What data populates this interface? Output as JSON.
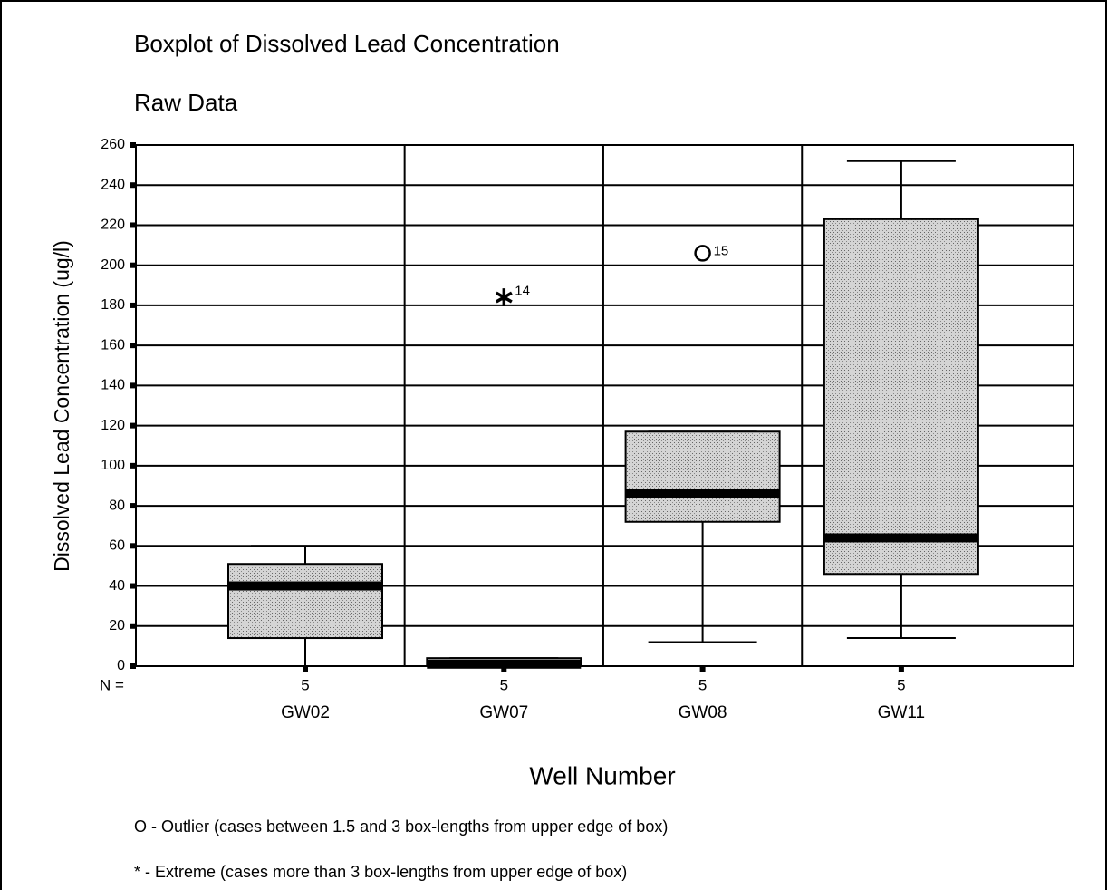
{
  "chart_data": {
    "type": "boxplot",
    "title": "Boxplot of Dissolved Lead Concentration",
    "subtitle": "Raw Data",
    "y_label": "Dissolved Lead Concentration (ug/l)",
    "x_label": "Well Number",
    "n_label": "N =",
    "categories": [
      "GW02",
      "GW07",
      "GW08",
      "GW11"
    ],
    "boxes": [
      {
        "min": 0,
        "q1": 14,
        "median": 40,
        "q3": 51,
        "max": 60,
        "n": 5,
        "outliers": []
      },
      {
        "min": 0,
        "q1": 0,
        "median": 1,
        "q3": 4,
        "max": 4,
        "n": 5,
        "outliers": [
          {
            "value": 186,
            "label": "14",
            "kind": "extreme"
          }
        ]
      },
      {
        "min": 12,
        "q1": 72,
        "median": 86,
        "q3": 117,
        "max": 117,
        "n": 5,
        "outliers": [
          {
            "value": 206,
            "label": "15",
            "kind": "outlier"
          }
        ]
      },
      {
        "min": 14,
        "q1": 46,
        "median": 64,
        "q3": 223,
        "max": 252,
        "n": 5,
        "outliers": []
      }
    ],
    "ylim": [
      0,
      260
    ],
    "yticks": [
      0,
      20,
      40,
      60,
      80,
      100,
      120,
      140,
      160,
      180,
      200,
      220,
      240,
      260
    ],
    "grid": true,
    "box_color": "#c8c8c8",
    "notes": [
      "O - Outlier (cases between 1.5 and 3 box-lengths from upper edge of box)",
      "* - Extreme (cases more than 3 box-lengths from upper edge of box)"
    ]
  }
}
